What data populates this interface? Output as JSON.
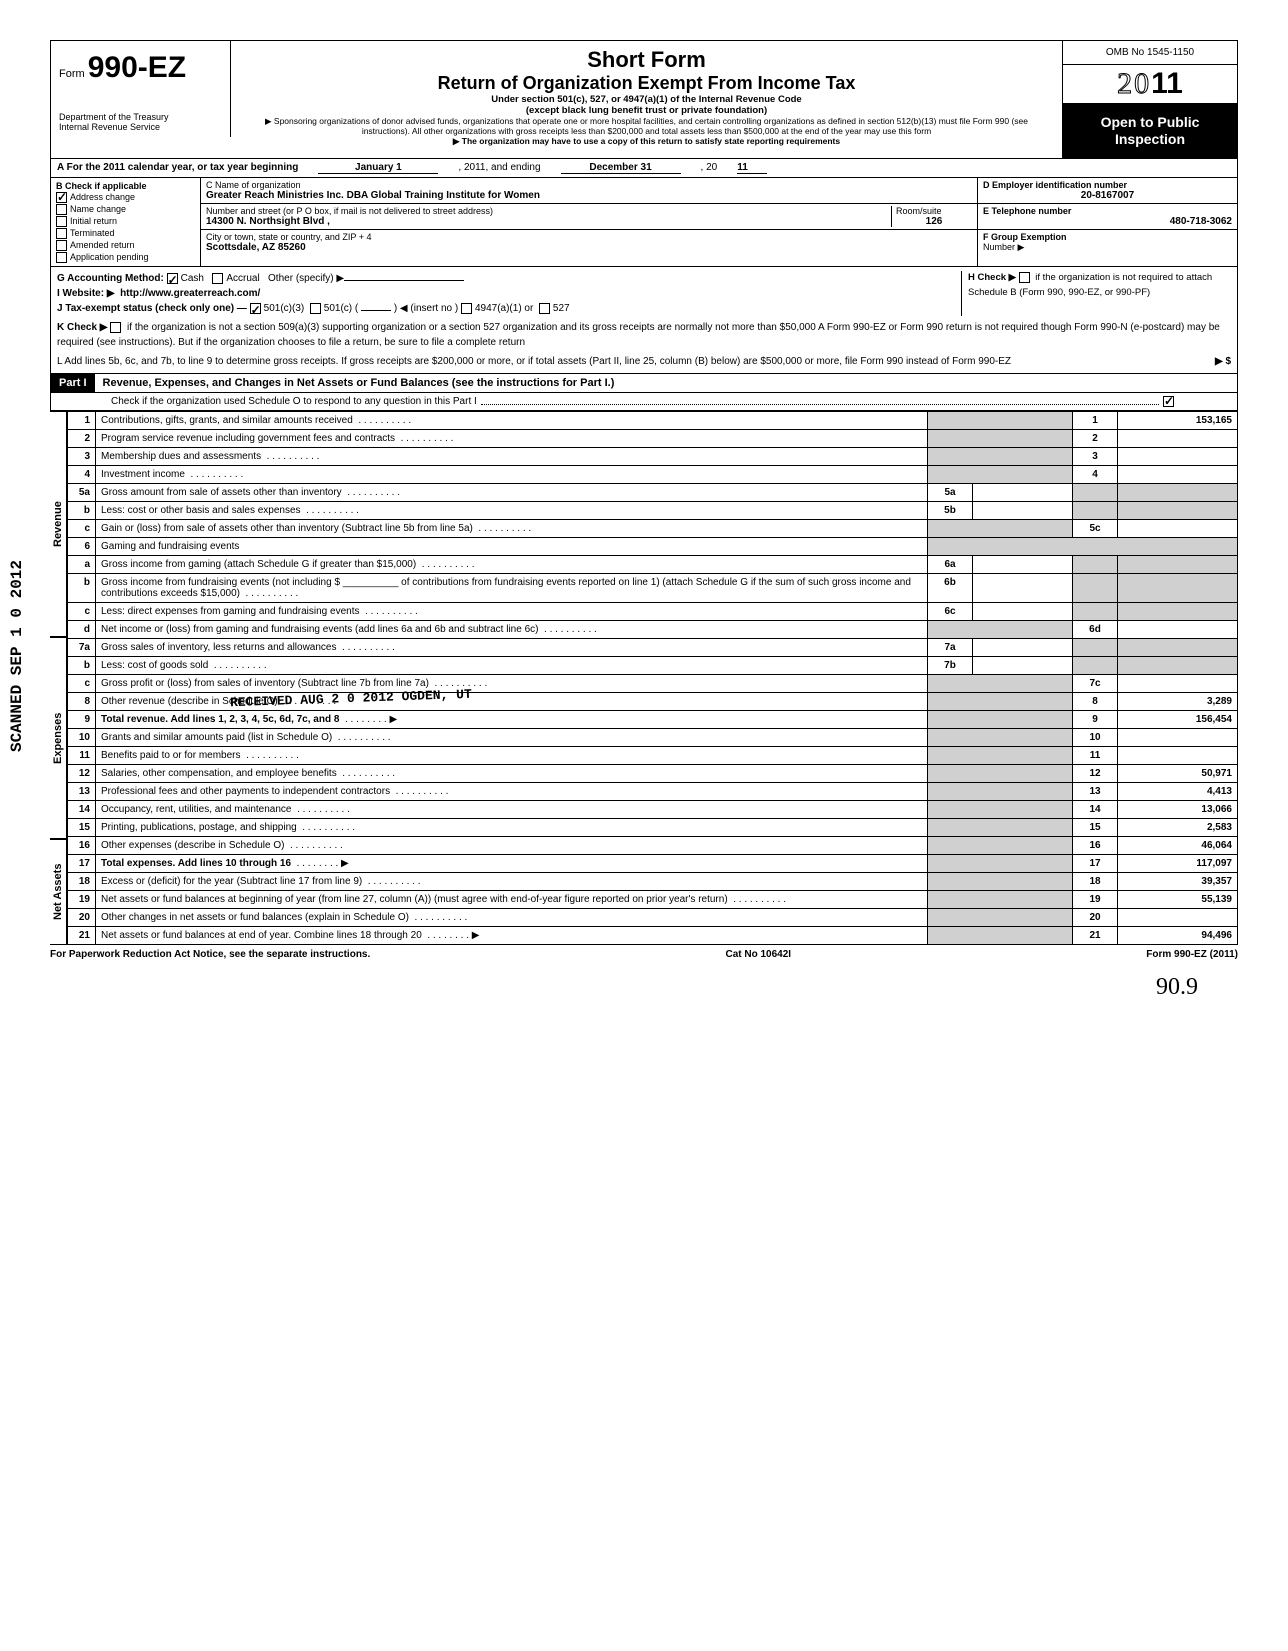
{
  "header": {
    "form_prefix": "Form",
    "form_number": "990-EZ",
    "dept1": "Department of the Treasury",
    "dept2": "Internal Revenue Service",
    "title1": "Short Form",
    "title2": "Return of Organization Exempt From Income Tax",
    "sub1": "Under section 501(c), 527, or 4947(a)(1) of the Internal Revenue Code",
    "sub2": "(except black lung benefit trust or private foundation)",
    "note1": "▶ Sponsoring organizations of donor advised funds, organizations that operate one or more hospital facilities, and certain controlling organizations as defined in section 512(b)(13) must file Form 990 (see instructions). All other organizations with gross receipts less than $200,000 and total assets less than $500,000 at the end of the year may use this form",
    "note2": "▶ The organization may have to use a copy of this return to satisfy state reporting requirements",
    "omb": "OMB No 1545-1150",
    "year_outline": "20",
    "year_bold": "11",
    "open": "Open to Public Inspection"
  },
  "lineA": {
    "text": "A For the 2011 calendar year, or tax year beginning",
    "mid": "January 1",
    "mid2": ", 2011, and ending",
    "end": "December 31",
    "end2": ", 20",
    "end3": "11"
  },
  "B": {
    "label": "B Check if applicable",
    "items": [
      {
        "checked": true,
        "label": "Address change"
      },
      {
        "checked": false,
        "label": "Name change"
      },
      {
        "checked": false,
        "label": "Initial return"
      },
      {
        "checked": false,
        "label": "Terminated"
      },
      {
        "checked": false,
        "label": "Amended return"
      },
      {
        "checked": false,
        "label": "Application pending"
      }
    ]
  },
  "C": {
    "name_label": "C Name of organization",
    "name": "Greater Reach Ministries Inc. DBA Global Training Institute for Women",
    "addr_label": "Number and street (or P O box, if mail is not delivered to street address)",
    "addr": "14300 N. Northsight Blvd ,",
    "room_label": "Room/suite",
    "room": "126",
    "city_label": "City or town, state or country, and ZIP + 4",
    "city": "Scottsdale, AZ  85260"
  },
  "D": {
    "label": "D Employer identification number",
    "value": "20-8167007"
  },
  "E": {
    "label": "E Telephone number",
    "value": "480-718-3062"
  },
  "F": {
    "label": "F Group Exemption",
    "label2": "Number ▶"
  },
  "G": {
    "label": "G Accounting Method:",
    "cash": "Cash",
    "accrual": "Accrual",
    "other": "Other (specify) ▶"
  },
  "H": {
    "label": "H Check ▶",
    "text": "if the organization is not required to attach Schedule B (Form 990, 990-EZ, or 990-PF)"
  },
  "I": {
    "label": "I  Website: ▶",
    "value": "http://www.greaterreach.com/"
  },
  "J": {
    "label": "J Tax-exempt status (check only one) —",
    "a": "501(c)(3)",
    "b": "501(c) (",
    "c": ") ◀ (insert no )",
    "d": "4947(a)(1) or",
    "e": "527"
  },
  "K": {
    "label": "K Check ▶",
    "text": "if the organization is not a section 509(a)(3) supporting organization or a section 527 organization and its gross receipts are normally not more than $50,000  A Form 990-EZ or Form 990 return is not required though Form 990-N (e-postcard) may be required (see instructions). But if the organization chooses to file a return, be sure to file a complete return"
  },
  "L": {
    "text": "L Add lines 5b, 6c, and 7b, to line 9 to determine gross receipts. If gross receipts are $200,000 or more, or if total assets (Part II, line 25, column (B) below) are $500,000 or more, file Form 990 instead of Form 990-EZ",
    "arrow": "▶ $"
  },
  "part1": {
    "label": "Part I",
    "title": "Revenue, Expenses, and Changes in Net Assets or Fund Balances (see the instructions for Part I.)",
    "check_line": "Check if the organization used Schedule O to respond to any question in this Part I"
  },
  "side_labels": {
    "rev": "Revenue",
    "exp": "Expenses",
    "net": "Net Assets"
  },
  "lines": [
    {
      "n": "1",
      "d": "Contributions, gifts, grants, and similar amounts received",
      "box": "1",
      "amt": "153,165"
    },
    {
      "n": "2",
      "d": "Program service revenue including government fees and contracts",
      "box": "2",
      "amt": ""
    },
    {
      "n": "3",
      "d": "Membership dues and assessments",
      "box": "3",
      "amt": ""
    },
    {
      "n": "4",
      "d": "Investment income",
      "box": "4",
      "amt": ""
    },
    {
      "n": "5a",
      "d": "Gross amount from sale of assets other than inventory",
      "ibox": "5a"
    },
    {
      "n": "b",
      "d": "Less: cost or other basis and sales expenses",
      "ibox": "5b"
    },
    {
      "n": "c",
      "d": "Gain or (loss) from sale of assets other than inventory (Subtract line 5b from line 5a)",
      "box": "5c",
      "amt": ""
    },
    {
      "n": "6",
      "d": "Gaming and fundraising events"
    },
    {
      "n": "a",
      "d": "Gross income from gaming (attach Schedule G if greater than $15,000)",
      "ibox": "6a"
    },
    {
      "n": "b",
      "d": "Gross income from fundraising events (not including  $ __________ of contributions from fundraising events reported on line 1) (attach Schedule G if the sum of such gross income and contributions exceeds $15,000)",
      "ibox": "6b"
    },
    {
      "n": "c",
      "d": "Less: direct expenses from gaming and fundraising events",
      "ibox": "6c"
    },
    {
      "n": "d",
      "d": "Net income or (loss) from gaming and fundraising events (add lines 6a and 6b and subtract line 6c)",
      "box": "6d",
      "amt": ""
    },
    {
      "n": "7a",
      "d": "Gross sales of inventory, less returns and allowances",
      "ibox": "7a"
    },
    {
      "n": "b",
      "d": "Less: cost of goods sold",
      "ibox": "7b"
    },
    {
      "n": "c",
      "d": "Gross profit or (loss) from sales of inventory (Subtract line 7b from line 7a)",
      "box": "7c",
      "amt": ""
    },
    {
      "n": "8",
      "d": "Other revenue (describe in Schedule O)",
      "box": "8",
      "amt": "3,289"
    },
    {
      "n": "9",
      "d": "Total revenue. Add lines 1, 2, 3, 4, 5c, 6d, 7c, and 8",
      "box": "9",
      "amt": "156,454",
      "bold": true,
      "arrow": true
    },
    {
      "n": "10",
      "d": "Grants and similar amounts paid (list in Schedule O)",
      "box": "10",
      "amt": ""
    },
    {
      "n": "11",
      "d": "Benefits paid to or for members",
      "box": "11",
      "amt": ""
    },
    {
      "n": "12",
      "d": "Salaries, other compensation, and employee benefits",
      "box": "12",
      "amt": "50,971"
    },
    {
      "n": "13",
      "d": "Professional fees and other payments to independent contractors",
      "box": "13",
      "amt": "4,413"
    },
    {
      "n": "14",
      "d": "Occupancy, rent, utilities, and maintenance",
      "box": "14",
      "amt": "13,066"
    },
    {
      "n": "15",
      "d": "Printing, publications, postage, and shipping",
      "box": "15",
      "amt": "2,583"
    },
    {
      "n": "16",
      "d": "Other expenses (describe in Schedule O)",
      "box": "16",
      "amt": "46,064"
    },
    {
      "n": "17",
      "d": "Total expenses. Add lines 10 through 16",
      "box": "17",
      "amt": "117,097",
      "bold": true,
      "arrow": true
    },
    {
      "n": "18",
      "d": "Excess or (deficit) for the year (Subtract line 17 from line 9)",
      "box": "18",
      "amt": "39,357"
    },
    {
      "n": "19",
      "d": "Net assets or fund balances at beginning of year (from line 27, column (A)) (must agree with end-of-year figure reported on prior year's return)",
      "box": "19",
      "amt": "55,139"
    },
    {
      "n": "20",
      "d": "Other changes in net assets or fund balances (explain in Schedule O)",
      "box": "20",
      "amt": ""
    },
    {
      "n": "21",
      "d": "Net assets or fund balances at end of year. Combine lines 18 through 20",
      "box": "21",
      "amt": "94,496",
      "arrow": true
    }
  ],
  "footer": {
    "left": "For Paperwork Reduction Act Notice, see the separate instructions.",
    "mid": "Cat No 10642I",
    "right": "Form 990-EZ (2011)"
  },
  "signature": "90.9",
  "stamps": {
    "scanned": "SCANNED SEP 1 0 2012",
    "received": "RECEIVED  AUG 2 0 2012  OGDEN, UT"
  }
}
